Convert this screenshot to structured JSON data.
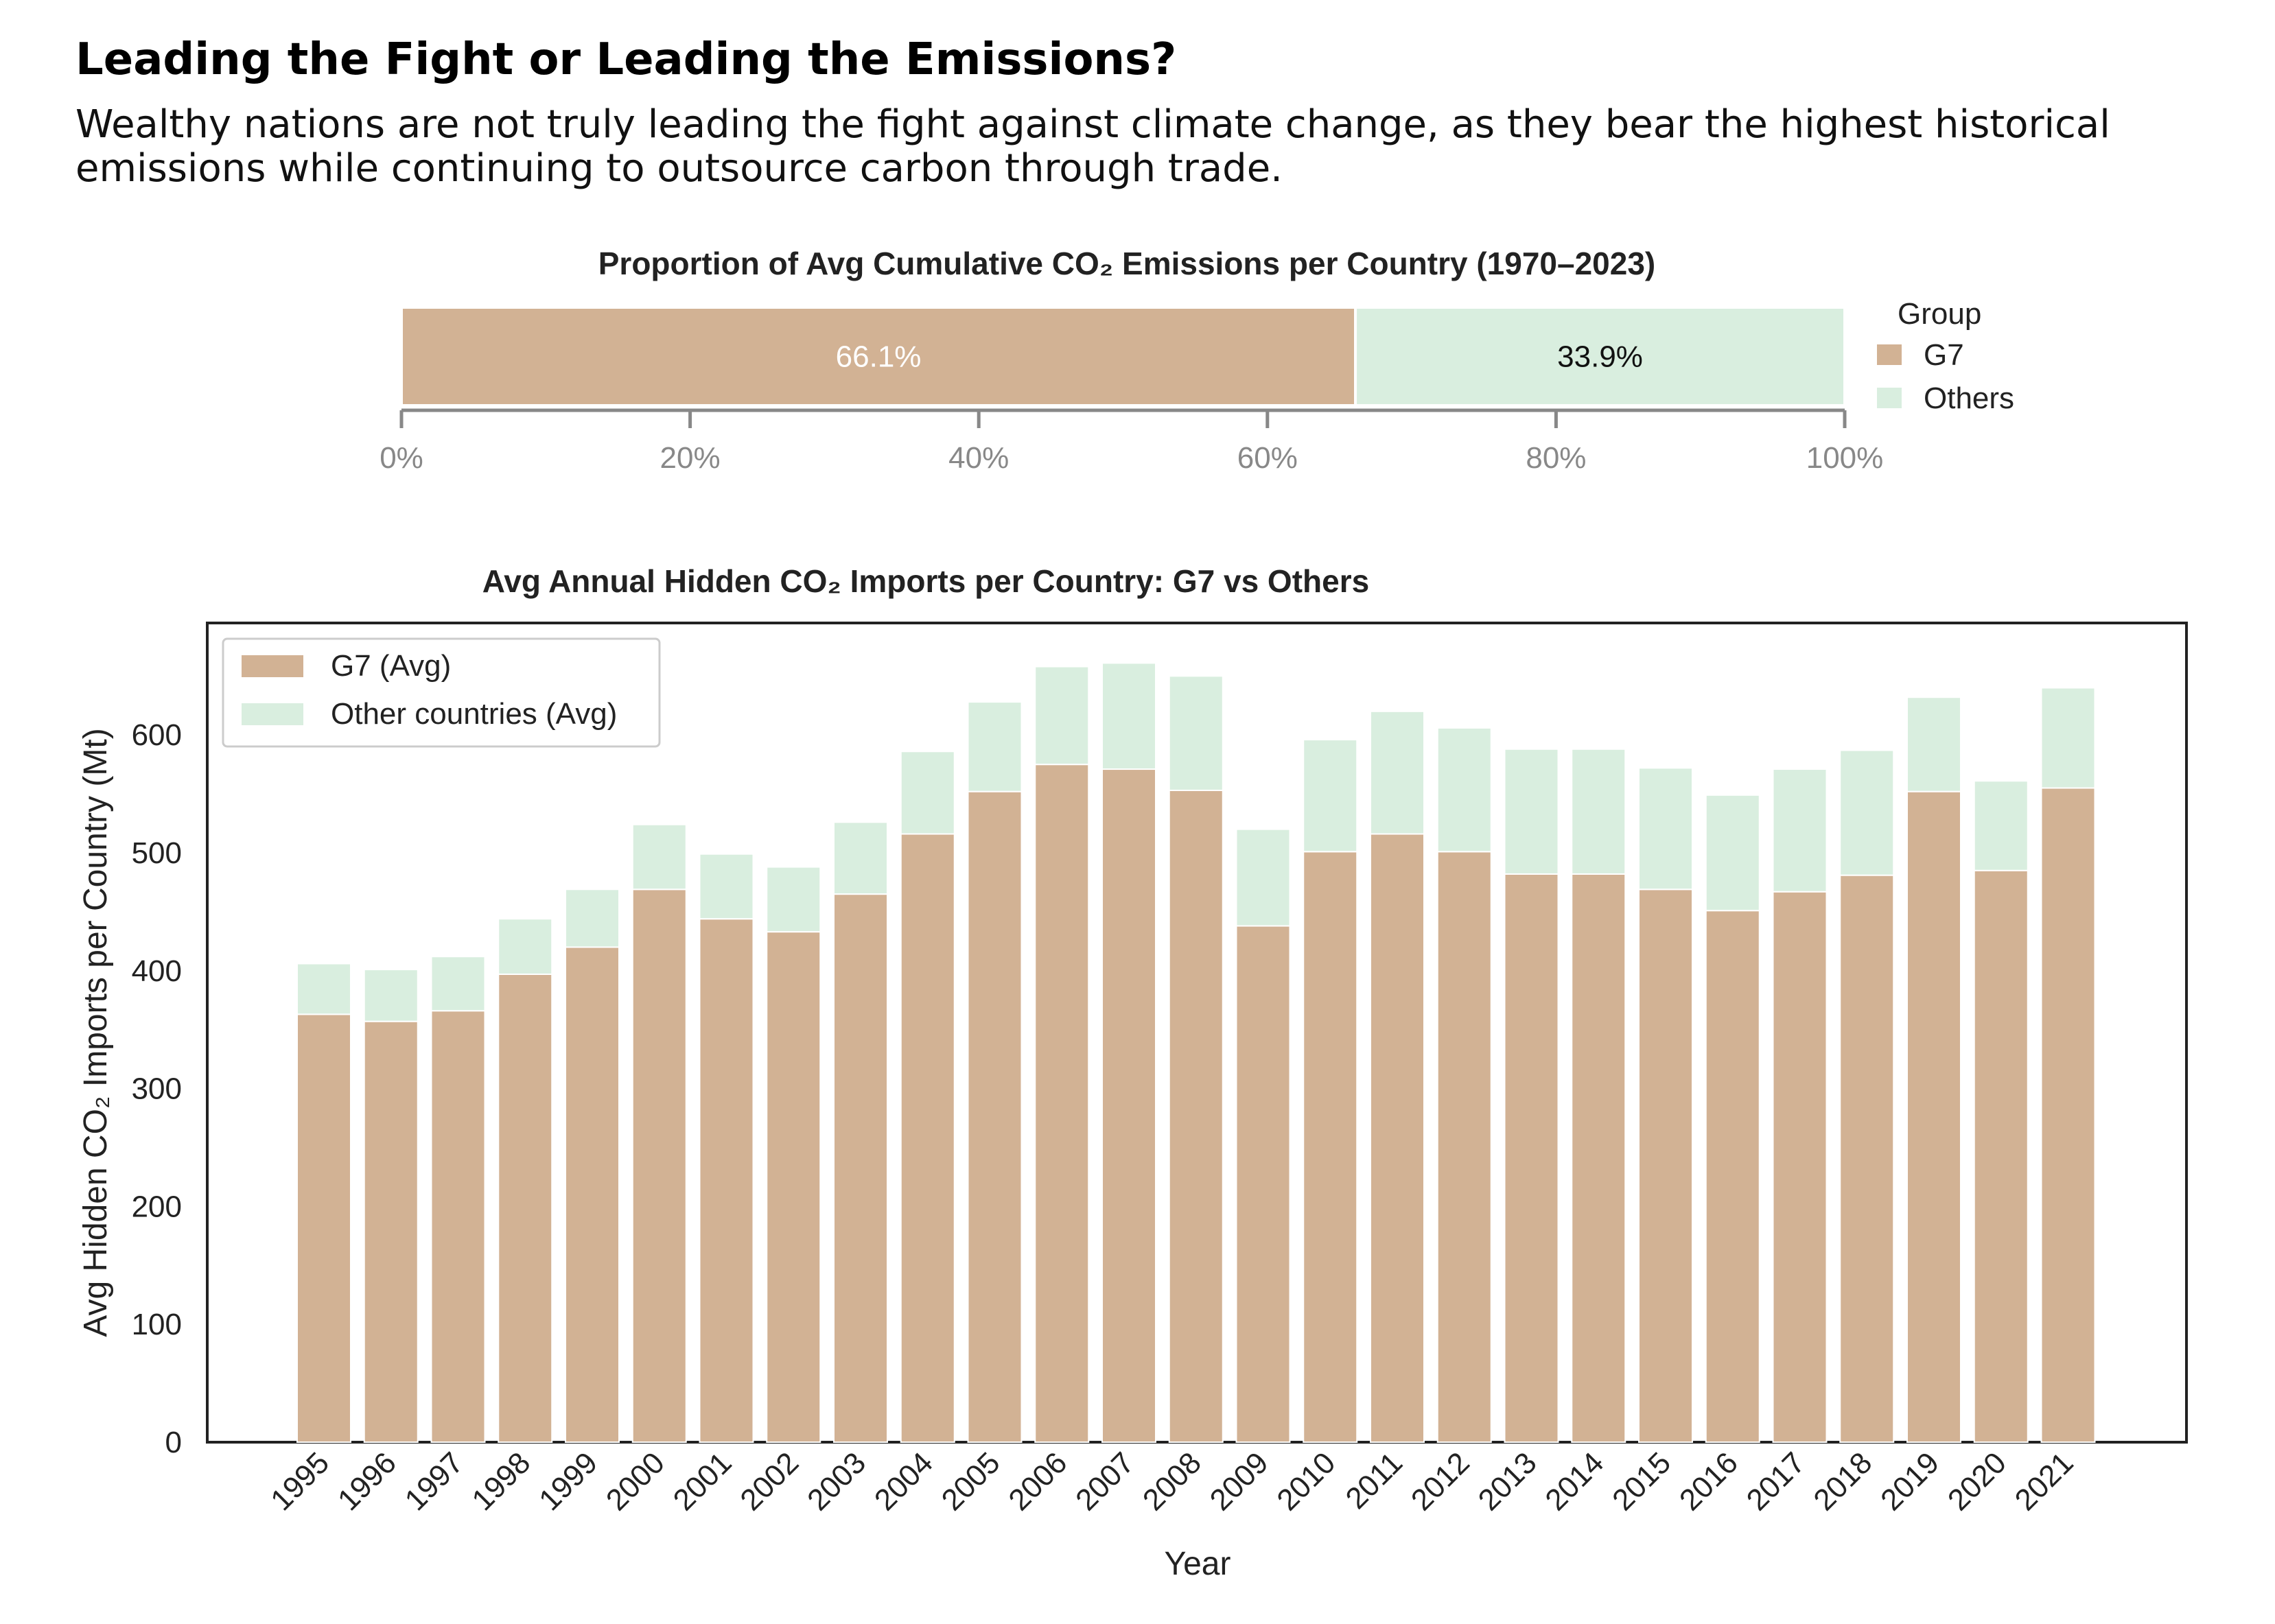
{
  "header": {
    "title": "Leading the Fight or Leading the Emissions?",
    "subtitle": "Wealthy nations are not truly leading the fight against climate change, as they bear the highest historical emissions while continuing to outsource carbon through trade."
  },
  "colors": {
    "g7": "#d2b294",
    "others": "#d9eedf"
  },
  "chart_data": [
    {
      "type": "bar",
      "orientation": "horizontal-stacked",
      "title": "Proportion of Avg Cumulative CO₂ Emissions per Country (1970–2023)",
      "xlim": [
        0,
        100
      ],
      "x_tick_labels": [
        "0%",
        "20%",
        "40%",
        "60%",
        "80%",
        "100%"
      ],
      "series": [
        {
          "name": "G7",
          "value": 66.1,
          "label": "66.1%"
        },
        {
          "name": "Others",
          "value": 33.9,
          "label": "33.9%"
        }
      ],
      "legend": {
        "title": "Group",
        "placement": "right"
      }
    },
    {
      "type": "bar",
      "orientation": "vertical-stacked",
      "title": "Avg Annual Hidden CO₂ Imports per Country: G7 vs Others",
      "xlabel": "Year",
      "ylabel": "Avg Hidden CO₂ Imports per Country (Mt)",
      "ylim": [
        0,
        695
      ],
      "y_ticks": [
        0,
        100,
        200,
        300,
        400,
        500,
        600
      ],
      "categories": [
        "1995",
        "1996",
        "1997",
        "1998",
        "1999",
        "2000",
        "2001",
        "2002",
        "2003",
        "2004",
        "2005",
        "2006",
        "2007",
        "2008",
        "2009",
        "2010",
        "2011",
        "2012",
        "2013",
        "2014",
        "2015",
        "2016",
        "2017",
        "2018",
        "2019",
        "2020",
        "2021"
      ],
      "series": [
        {
          "name": "G7 (Avg)",
          "values": [
            363,
            357,
            366,
            397,
            420,
            469,
            444,
            433,
            465,
            516,
            552,
            575,
            571,
            553,
            438,
            501,
            516,
            501,
            482,
            482,
            469,
            451,
            467,
            481,
            552,
            485,
            555
          ]
        },
        {
          "name": "Other countries (Avg)",
          "values": [
            43,
            44,
            46,
            47,
            49,
            55,
            55,
            55,
            61,
            70,
            76,
            83,
            90,
            97,
            82,
            95,
            104,
            105,
            106,
            106,
            103,
            98,
            104,
            106,
            80,
            76,
            85
          ]
        }
      ],
      "legend": {
        "placement": "top-left"
      },
      "grid": false
    }
  ]
}
